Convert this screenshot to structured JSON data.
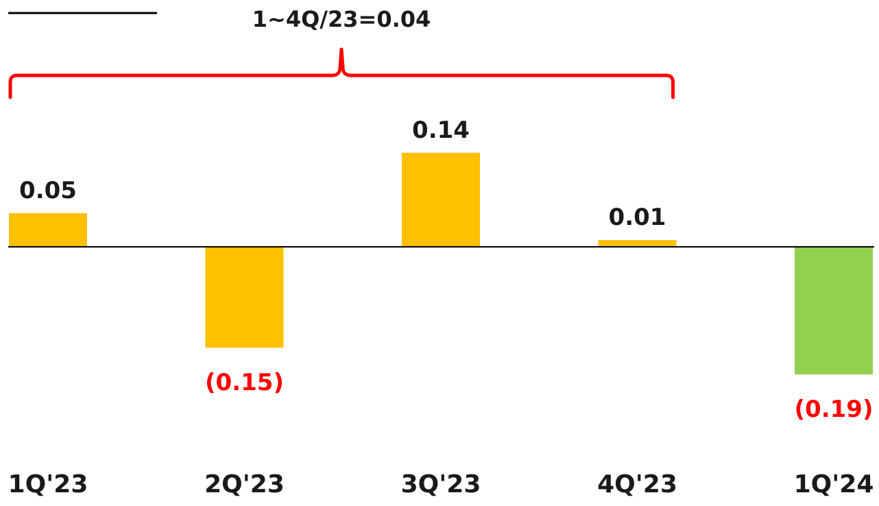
{
  "chart_data": {
    "type": "bar",
    "categories": [
      "1Q'23",
      "2Q'23",
      "3Q'23",
      "4Q'23",
      "1Q'24"
    ],
    "values": [
      0.05,
      -0.15,
      0.14,
      0.01,
      -0.19
    ],
    "data_labels": [
      "0.05",
      "(0.15)",
      "0.14",
      "0.01",
      "(0.19)"
    ],
    "bar_colors": [
      "#FFC000",
      "#FFC000",
      "#FFC000",
      "#FFC000",
      "#92D050"
    ],
    "label_colors": {
      "positive": "#1a1a1a",
      "negative": "#FF0000"
    },
    "bracket": {
      "label": "1~4Q/23=0.04",
      "spans": [
        "1Q'23",
        "4Q'23"
      ],
      "color": "#FF0000"
    },
    "title": "",
    "xlabel": "",
    "ylabel": "",
    "ylim": [
      -0.19,
      0.19
    ],
    "grid": false,
    "zero_line_color": "#000000"
  }
}
